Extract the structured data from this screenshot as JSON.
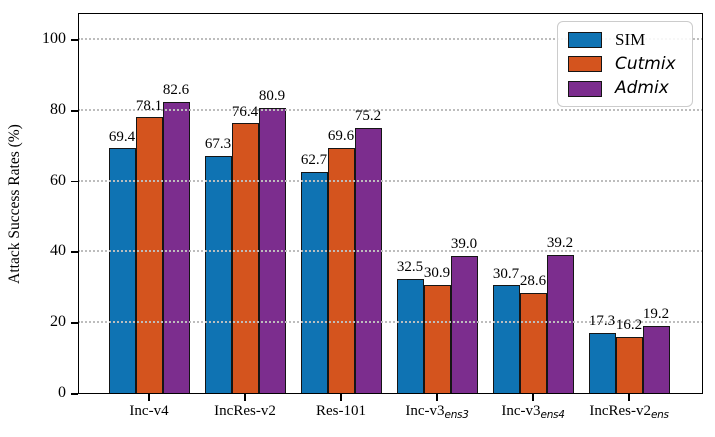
{
  "chart_data": {
    "type": "bar",
    "title": "",
    "ylabel": "Attack Success Rates (%)",
    "xlabel": "",
    "ylim": [
      0,
      107.6
    ],
    "yticks": [
      0,
      20,
      40,
      60,
      80,
      100
    ],
    "grid": {
      "axis": "y",
      "style": "dotted",
      "color": "#bdbdbd",
      "above_bars": true
    },
    "legend_position": "upper right",
    "legend_border_color": "#cccccc",
    "bar_edge_color": "#151515",
    "categories": [
      {
        "main": "Inc-v4",
        "sub": ""
      },
      {
        "main": "IncRes-v2",
        "sub": ""
      },
      {
        "main": "Res-101",
        "sub": ""
      },
      {
        "main": "Inc-v3",
        "sub": "ens3"
      },
      {
        "main": "Inc-v3",
        "sub": "ens4"
      },
      {
        "main": "IncRes-v2",
        "sub": "ens"
      }
    ],
    "series": [
      {
        "name": "SIM",
        "italic": false,
        "color": "#0f73b3",
        "values": [
          69.4,
          67.3,
          62.7,
          32.5,
          30.7,
          17.3
        ]
      },
      {
        "name": "Cutmix",
        "italic": true,
        "color": "#d4541e",
        "values": [
          78.1,
          76.4,
          69.6,
          30.9,
          28.6,
          16.2
        ]
      },
      {
        "name": "Admix",
        "italic": true,
        "color": "#7c2d8e",
        "values": [
          82.6,
          80.9,
          75.2,
          39.0,
          39.2,
          19.2
        ]
      }
    ]
  }
}
